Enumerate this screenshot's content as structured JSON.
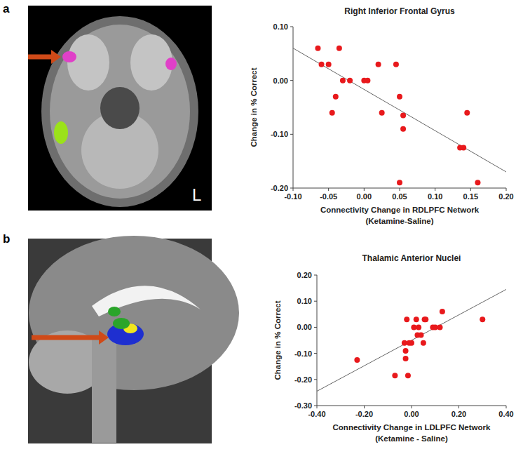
{
  "chart_data": [
    {
      "type": "scatter",
      "panel_label": "a",
      "image_label": "L",
      "title": "Right Inferior Frontal Gyrus",
      "xlabel": [
        "Connectivity Change in RDLPFC Network",
        "(Ketamine-Saline)"
      ],
      "ylabel": "Change in % Correct",
      "color": "#e8191c",
      "marker": "circle",
      "x": [
        -0.065,
        -0.06,
        -0.05,
        -0.04,
        -0.045,
        -0.035,
        -0.03,
        -0.02,
        0.0,
        0.005,
        0.02,
        0.025,
        0.045,
        0.05,
        0.055,
        0.055,
        0.05,
        0.135,
        0.14,
        0.145,
        0.16
      ],
      "values": [
        0.06,
        0.03,
        0.03,
        -0.03,
        -0.06,
        0.06,
        0.0,
        0.0,
        0.0,
        0.0,
        0.03,
        -0.06,
        0.03,
        -0.03,
        -0.065,
        -0.09,
        -0.19,
        -0.125,
        -0.125,
        -0.06,
        -0.19
      ],
      "trend_line": {
        "x": [
          -0.1,
          0.2
        ],
        "y": [
          0.06,
          -0.17
        ]
      },
      "xlim": [
        -0.1,
        0.2
      ],
      "ylim": [
        -0.2,
        0.1
      ],
      "xticks": [
        {
          "value": -0.1,
          "label": "-0.10"
        },
        {
          "value": -0.05,
          "label": "-0.05"
        },
        {
          "value": 0,
          "label": "0.00"
        },
        {
          "value": 0.05,
          "label": "0.05"
        },
        {
          "value": 0.1,
          "label": "0.10"
        },
        {
          "value": 0.15,
          "label": "0.15"
        },
        {
          "value": 0.2,
          "label": "0.20"
        }
      ],
      "yticks": [
        {
          "value": 0.1,
          "label": "0.10"
        },
        {
          "value": 0,
          "label": "0.00"
        },
        {
          "value": -0.1,
          "label": "-0.10"
        },
        {
          "value": -0.2,
          "label": "-0.20"
        }
      ]
    },
    {
      "type": "scatter",
      "panel_label": "b",
      "title": "Thalamic Anterior Nuclei",
      "xlabel": [
        "Connectivity Change in LDLPFC Network",
        "(Ketamine - Saline)"
      ],
      "ylabel": "Change in % Correct",
      "color": "#e8191c",
      "marker": "circle",
      "x": [
        -0.23,
        -0.07,
        -0.03,
        -0.025,
        -0.025,
        -0.02,
        -0.015,
        -0.01,
        0.0,
        0.01,
        0.02,
        0.025,
        0.03,
        0.04,
        0.05,
        0.055,
        0.06,
        0.09,
        0.1,
        0.12,
        0.13,
        0.3
      ],
      "values": [
        -0.125,
        -0.185,
        -0.06,
        -0.09,
        -0.12,
        0.03,
        -0.185,
        -0.06,
        -0.06,
        0.0,
        0.03,
        -0.03,
        0.0,
        -0.03,
        -0.06,
        0.03,
        0.03,
        0.0,
        0.0,
        0.0,
        0.06,
        0.03
      ],
      "trend_line": {
        "x": [
          -0.4,
          0.4
        ],
        "y": [
          -0.245,
          0.145
        ]
      },
      "xlim": [
        -0.4,
        0.4
      ],
      "ylim": [
        -0.3,
        0.2
      ],
      "xticks": [
        {
          "value": -0.4,
          "label": "-0.40"
        },
        {
          "value": -0.2,
          "label": "-0.20"
        },
        {
          "value": 0,
          "label": "0.00"
        },
        {
          "value": 0.2,
          "label": "0.20"
        },
        {
          "value": 0.4,
          "label": "0.40"
        }
      ],
      "yticks": [
        {
          "value": 0.2,
          "label": "0.20"
        },
        {
          "value": 0.1,
          "label": "0.10"
        },
        {
          "value": 0,
          "label": "0.00"
        },
        {
          "value": -0.1,
          "label": "-0.10"
        },
        {
          "value": -0.2,
          "label": "-0.20"
        },
        {
          "value": -0.3,
          "label": "-0.30"
        }
      ]
    }
  ]
}
